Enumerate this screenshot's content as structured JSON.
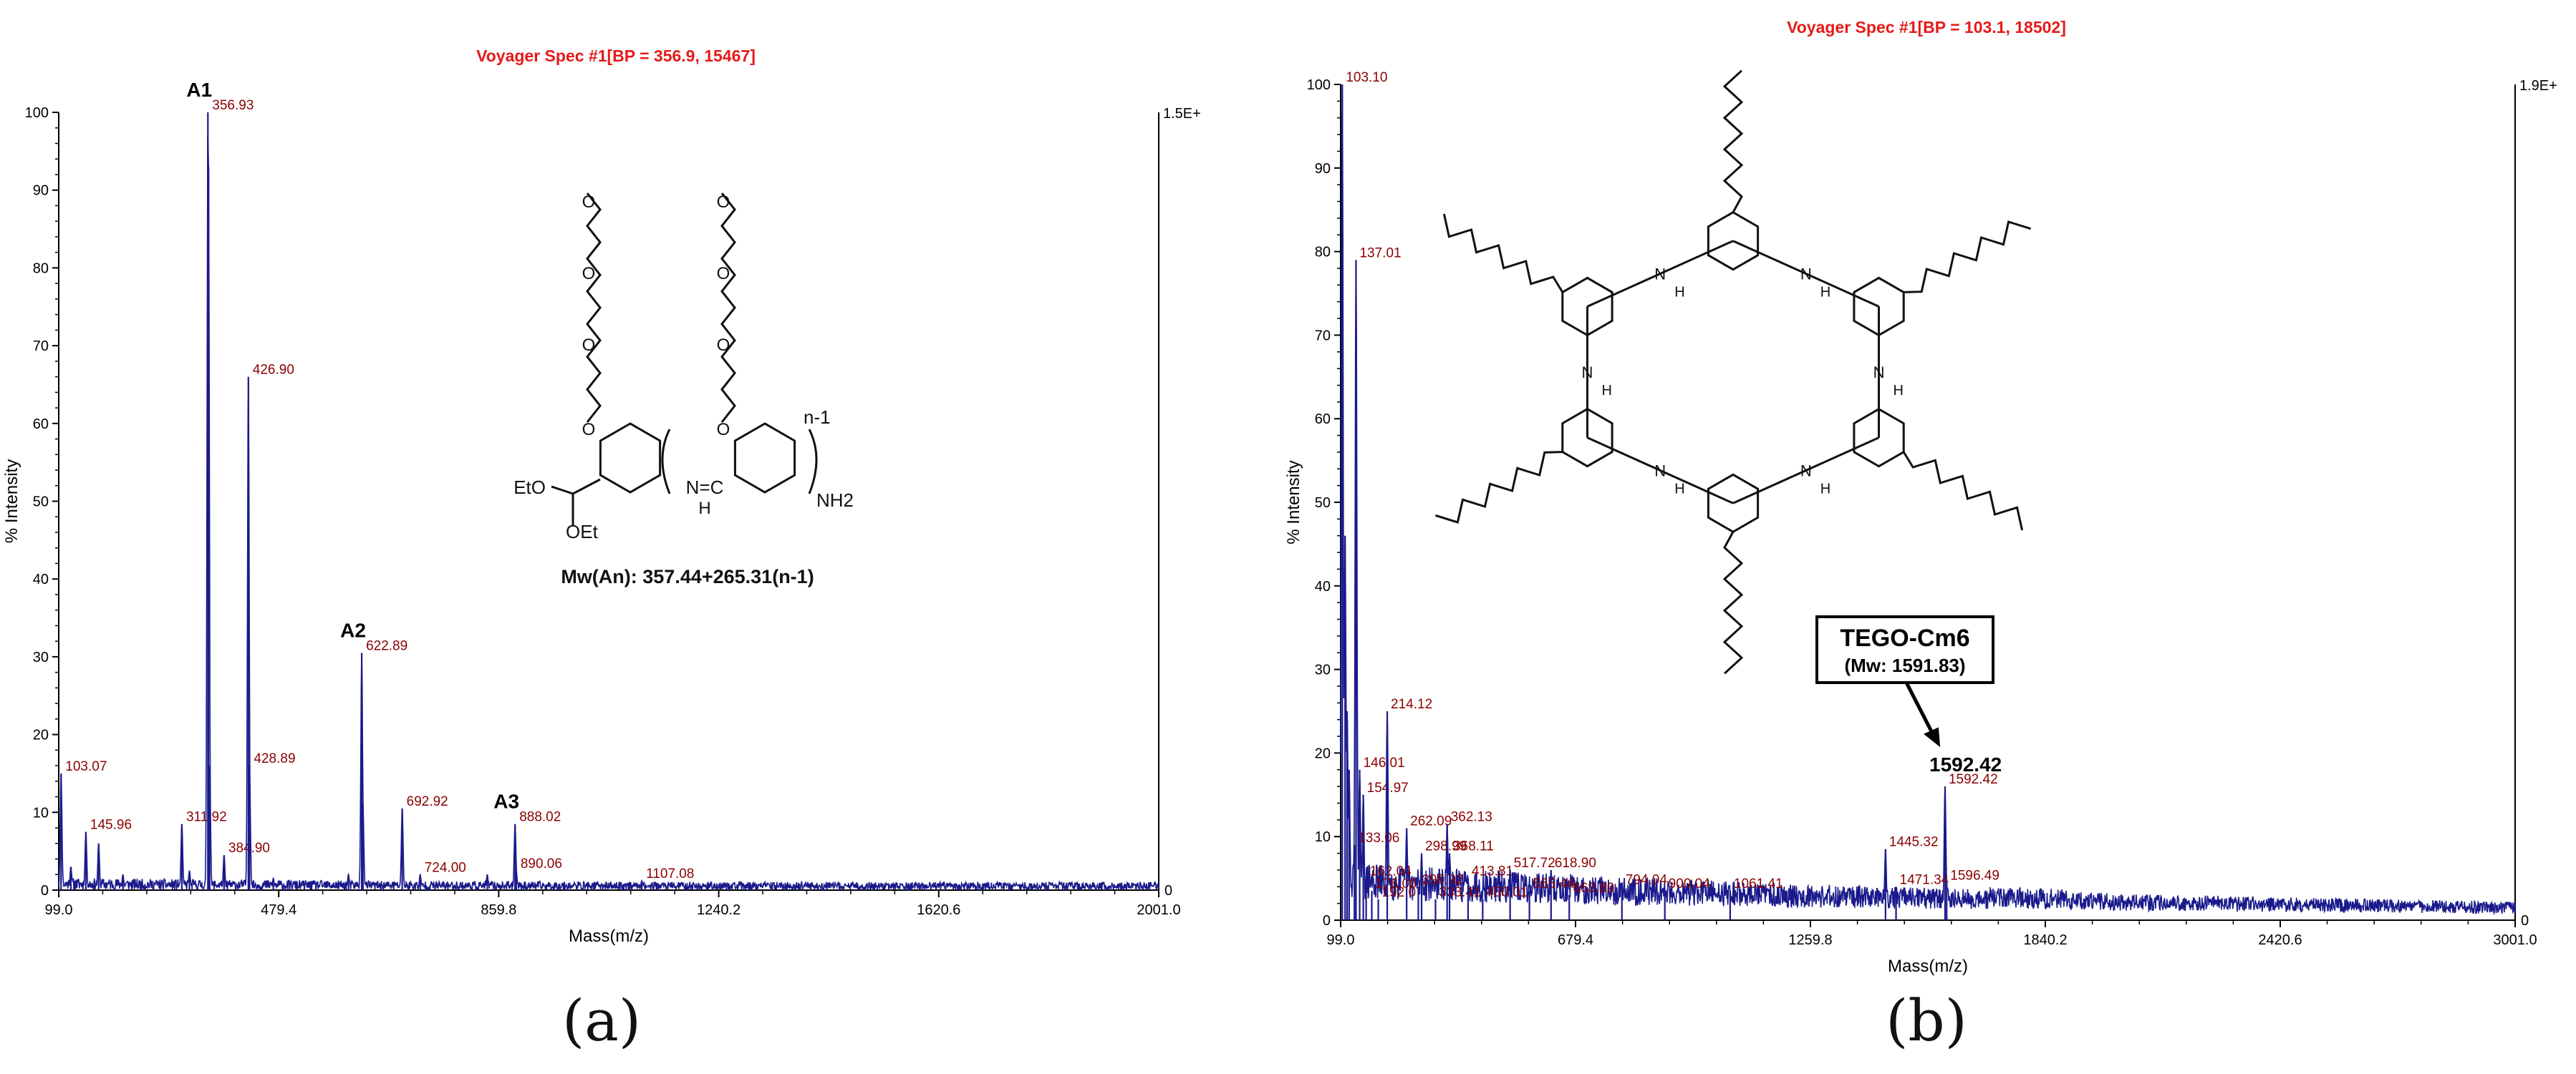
{
  "colors": {
    "spectrum": "#1a1a8c",
    "peak_label": "#8b0000",
    "title": "#e51a1a",
    "axis": "#000000",
    "structure": "#111111"
  },
  "chart_data": [
    {
      "type": "line",
      "panel_label": "(a)",
      "title": "Voyager Spec #1[BP = 356.9, 15467]",
      "xlabel": "Mass(m/z)",
      "ylabel": "% Intensity",
      "xlim": [
        99.0,
        2001.0
      ],
      "ylim": [
        0,
        100
      ],
      "x_ticks": [
        "99.0",
        "479.4",
        "859.8",
        "1240.2",
        "1620.6",
        "2001.0"
      ],
      "y_ticks": [
        0,
        10,
        20,
        30,
        40,
        50,
        60,
        70,
        80,
        90,
        100
      ],
      "right_axis": {
        "top": "1.5E+",
        "bottom": "0"
      },
      "grid": false,
      "legend": "none",
      "baseline_noise_level": 1.0,
      "peaks": [
        {
          "x": 103.07,
          "y": 15,
          "label": "103.07"
        },
        {
          "x": 120,
          "y": 3
        },
        {
          "x": 145.96,
          "y": 7.5,
          "label": "145.96"
        },
        {
          "x": 168,
          "y": 6
        },
        {
          "x": 210,
          "y": 2
        },
        {
          "x": 311.92,
          "y": 8.5,
          "label": "311.92"
        },
        {
          "x": 325,
          "y": 2.5
        },
        {
          "x": 356.93,
          "y": 100,
          "label": "356.93",
          "annotation": "A1"
        },
        {
          "x": 358,
          "y": 93
        },
        {
          "x": 360,
          "y": 16
        },
        {
          "x": 384.9,
          "y": 4.5,
          "label": "384.90"
        },
        {
          "x": 426.9,
          "y": 66,
          "label": "426.90"
        },
        {
          "x": 428.89,
          "y": 16,
          "label": "428.89"
        },
        {
          "x": 470,
          "y": 1.5
        },
        {
          "x": 600,
          "y": 2
        },
        {
          "x": 622.89,
          "y": 30.5,
          "label": "622.89",
          "annotation": "A2"
        },
        {
          "x": 625,
          "y": 11
        },
        {
          "x": 692.92,
          "y": 10.5,
          "label": "692.92"
        },
        {
          "x": 724.0,
          "y": 2,
          "label": "724.00"
        },
        {
          "x": 840,
          "y": 2
        },
        {
          "x": 888.02,
          "y": 8.5,
          "label": "888.02",
          "annotation": "A3"
        },
        {
          "x": 890.06,
          "y": 2.5,
          "label": "890.06"
        },
        {
          "x": 1107.08,
          "y": 1.2,
          "label": "1107.08"
        }
      ],
      "structure": {
        "labels": [
          "EtO",
          "OEt",
          "N=C",
          "H",
          "n-1",
          "NH2"
        ],
        "formula": "Mw(An): 357.44+265.31(n-1)"
      }
    },
    {
      "type": "line",
      "panel_label": "(b)",
      "title": "Voyager Spec #1[BP = 103.1, 18502]",
      "xlabel": "Mass(m/z)",
      "ylabel": "% Intensity",
      "xlim": [
        99.0,
        3001.0
      ],
      "ylim": [
        0,
        100
      ],
      "x_ticks": [
        "99.0",
        "679.4",
        "1259.8",
        "1840.2",
        "2420.6",
        "3001.0"
      ],
      "y_ticks": [
        0,
        10,
        20,
        30,
        40,
        50,
        60,
        70,
        80,
        90,
        100
      ],
      "right_axis": {
        "top": "1.9E+",
        "bottom": "0"
      },
      "grid": false,
      "legend": "none",
      "baseline_noise_level": 6.0,
      "peaks": [
        {
          "x": 103.1,
          "y": 100,
          "label": "103.10"
        },
        {
          "x": 110,
          "y": 46
        },
        {
          "x": 115,
          "y": 25
        },
        {
          "x": 120,
          "y": 18
        },
        {
          "x": 133.06,
          "y": 9,
          "label": "133.06"
        },
        {
          "x": 137.01,
          "y": 79,
          "label": "137.01"
        },
        {
          "x": 146.01,
          "y": 18,
          "label": "146.01"
        },
        {
          "x": 154.97,
          "y": 15,
          "label": "154.97"
        },
        {
          "x": 162.04,
          "y": 5,
          "label": "162.04"
        },
        {
          "x": 176.0,
          "y": 3.5,
          "label": "176.00"
        },
        {
          "x": 192.0,
          "y": 2.5,
          "label": "192.0"
        },
        {
          "x": 214.12,
          "y": 25,
          "label": "214.12"
        },
        {
          "x": 262.09,
          "y": 11,
          "label": "262.09"
        },
        {
          "x": 290.92,
          "y": 4,
          "label": "290.92"
        },
        {
          "x": 298.99,
          "y": 8,
          "label": "298.99"
        },
        {
          "x": 333.41,
          "y": 2.5,
          "label": "333.41"
        },
        {
          "x": 362.13,
          "y": 11.5,
          "label": "362.13"
        },
        {
          "x": 368.11,
          "y": 8,
          "label": "368.11"
        },
        {
          "x": 413.81,
          "y": 5,
          "label": "413.81"
        },
        {
          "x": 450.01,
          "y": 2.5,
          "label": "450.01"
        },
        {
          "x": 517.72,
          "y": 6,
          "label": "517.72"
        },
        {
          "x": 565.44,
          "y": 3.5,
          "label": "565.44"
        },
        {
          "x": 618.9,
          "y": 6,
          "label": "618.90"
        },
        {
          "x": 663.89,
          "y": 3,
          "label": "663.89"
        },
        {
          "x": 794.04,
          "y": 4,
          "label": "794.04"
        },
        {
          "x": 900.04,
          "y": 3.5,
          "label": "900.04"
        },
        {
          "x": 1061.41,
          "y": 3.5,
          "label": "1061.41"
        },
        {
          "x": 1445.32,
          "y": 8.5,
          "label": "1445.32"
        },
        {
          "x": 1471.34,
          "y": 4,
          "label": "1471.34"
        },
        {
          "x": 1592.42,
          "y": 16,
          "label": "1592.42"
        },
        {
          "x": 1596.49,
          "y": 4.5,
          "label": "1596.49"
        }
      ],
      "callout": {
        "name": "TEGO-Cm6",
        "mw": "(Mw: 1591.83)",
        "peak": "1592.42"
      },
      "structure": {
        "labels": [
          "N",
          "N",
          "N",
          "N",
          "N",
          "N",
          "H",
          "H",
          "H",
          "H",
          "H",
          "H"
        ]
      }
    }
  ]
}
